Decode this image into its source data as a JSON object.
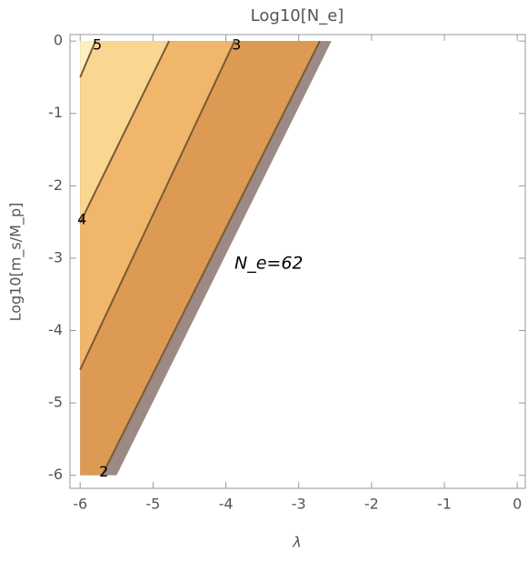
{
  "chart_data": {
    "type": "contour",
    "title": "Log10[N_e]",
    "x_label": "λ",
    "y_label": "Log10[m_s/M_p]",
    "annotation": "N_e=62",
    "xlim": [
      -6.14,
      0.11
    ],
    "ylim": [
      -6.18,
      0.09
    ],
    "xticks": [
      -6,
      -5,
      -4,
      -3,
      -2,
      -1,
      0
    ],
    "yticks": [
      -6,
      -5,
      -4,
      -3,
      -2,
      -1,
      0
    ],
    "region": {
      "x": [
        -6,
        -6,
        -2.55,
        -5.5
      ],
      "y": [
        -6,
        0,
        0,
        -6
      ],
      "color": "#9c8a86"
    },
    "line_color": "#7a5a32",
    "contours": [
      {
        "level": 2,
        "x": [
          -5.7,
          -2.71
        ],
        "y": [
          -6,
          0
        ],
        "fill": "#dc9a55"
      },
      {
        "level": 3,
        "x": [
          -6,
          -3.88
        ],
        "y": [
          -4.54,
          0
        ],
        "fill": "#f0b66c"
      },
      {
        "level": 4,
        "x": [
          -6,
          -4.78
        ],
        "y": [
          -2.51,
          0
        ],
        "fill": "#fbd592"
      },
      {
        "level": 5,
        "x": [
          -6,
          -5.79
        ],
        "y": [
          -0.5,
          0
        ],
        "fill": "#fdf0c0"
      }
    ]
  }
}
